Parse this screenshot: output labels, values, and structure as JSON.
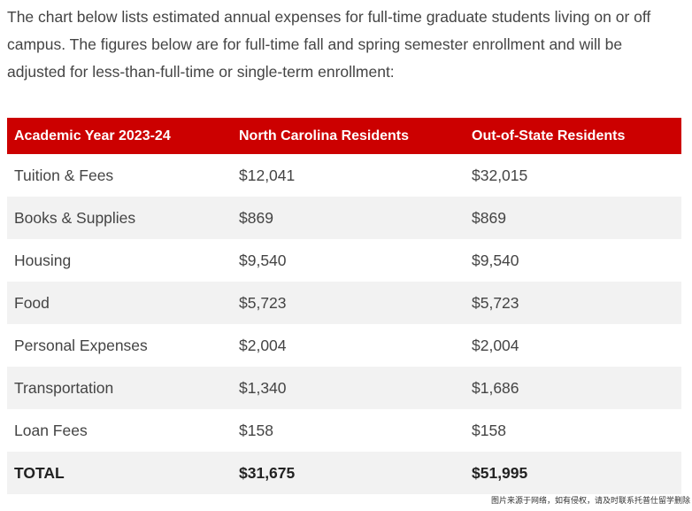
{
  "intro": {
    "text": "The chart below lists estimated annual expenses for full-time graduate students living on or off campus. The figures below are for full-time fall and spring semester enrollment and will be adjusted for less-than-full-time or single-term enrollment:"
  },
  "table": {
    "headers": [
      "Academic Year 2023-24",
      "North Carolina Residents",
      "Out-of-State Residents"
    ],
    "rows": [
      [
        "Tuition & Fees",
        "$12,041",
        "$32,015"
      ],
      [
        "Books & Supplies",
        "$869",
        "$869"
      ],
      [
        "Housing",
        "$9,540",
        "$9,540"
      ],
      [
        "Food",
        "$5,723",
        "$5,723"
      ],
      [
        "Personal Expenses",
        "$2,004",
        "$2,004"
      ],
      [
        "Transportation",
        "$1,340",
        "$1,686"
      ],
      [
        "Loan Fees",
        "$158",
        "$158"
      ]
    ],
    "total": [
      "TOTAL",
      "$31,675",
      "$51,995"
    ]
  },
  "colors": {
    "header_bg": "#cc0000",
    "stripe_bg": "#f2f2f2"
  },
  "watermark": "图片来源于网络，如有侵权，请及时联系托普仕留学删除"
}
